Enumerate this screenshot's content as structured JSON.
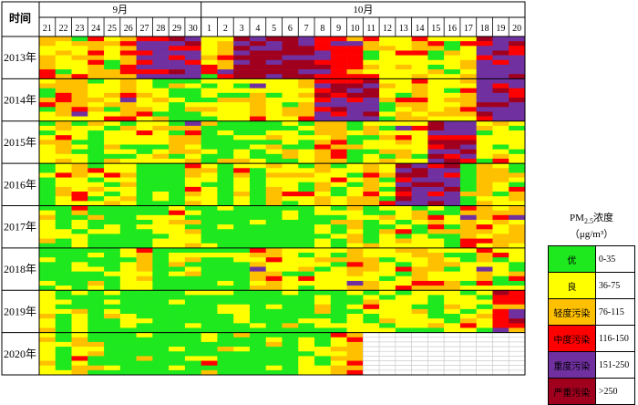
{
  "chart_data": {
    "type": "heatmap",
    "header": {
      "corner_label": "时间",
      "month_labels": [
        "9月",
        "10月"
      ],
      "days": [
        "21",
        "22",
        "23",
        "24",
        "25",
        "26",
        "27",
        "28",
        "29",
        "30",
        "1",
        "2",
        "3",
        "4",
        "5",
        "6",
        "7",
        "8",
        "9",
        "10",
        "11",
        "12",
        "13",
        "14",
        "15",
        "16",
        "17",
        "18",
        "19",
        "20"
      ]
    },
    "rows": [
      "2013年",
      "2014年",
      "2015年",
      "2016年",
      "2017年",
      "2018年",
      "2019年",
      "2020年"
    ],
    "days_with_data_2020": 20,
    "legend": {
      "title_prefix": "PM",
      "title_sub": "2.5",
      "title_suffix": "浓度",
      "unit": "（μg/m³）",
      "levels": [
        {
          "name": "优",
          "range": "0-35",
          "color": "#1ee81e"
        },
        {
          "name": "良",
          "range": "36-75",
          "color": "#ffff00"
        },
        {
          "name": "轻度污染",
          "range": "76-115",
          "color": "#ffc000"
        },
        {
          "name": "中度污染",
          "range": "116-150",
          "color": "#ff0000"
        },
        {
          "name": "重度污染",
          "range": "151-250",
          "color": "#7030a0"
        },
        {
          "name": "严重污染",
          "range": ">250",
          "color": "#a0001e"
        }
      ]
    },
    "empty_fill": "#ffffff",
    "empty_grid": "#c8c8c8"
  }
}
